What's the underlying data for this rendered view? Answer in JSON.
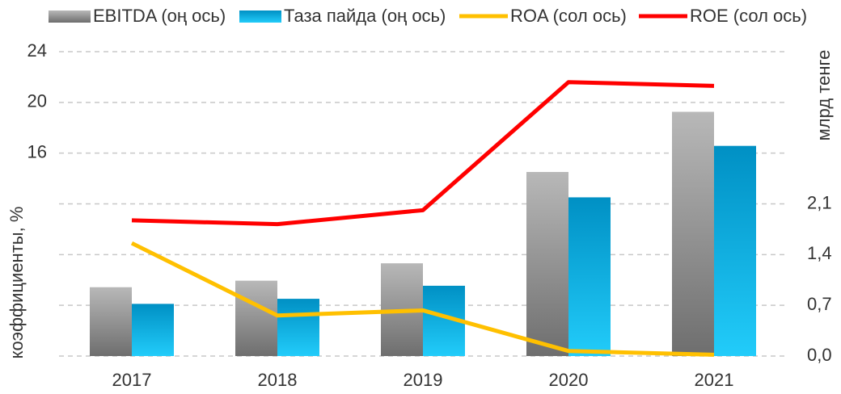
{
  "chart_data": {
    "type": "bar",
    "y_label": "коэффициенты, %",
    "y2_label": "млрд тенге",
    "categories": [
      "2017",
      "2018",
      "2019",
      "2020",
      "2021"
    ],
    "series": [
      {
        "name": "EBITDA (оң ось)",
        "type": "bar",
        "axis": "y2",
        "color": "#9a9a9a",
        "values": [
          0.95,
          1.04,
          1.28,
          2.54,
          3.37
        ]
      },
      {
        "name": "Таза пайда (оң ось)",
        "type": "bar",
        "axis": "y2",
        "color": "#00a8e0",
        "values": [
          0.72,
          0.79,
          0.97,
          2.19,
          2.9
        ]
      },
      {
        "name": "ROA (сол ось)",
        "type": "line",
        "color": "#ffc000",
        "values": [
          8.9,
          3.2,
          3.6,
          0.4,
          0.1
        ]
      },
      {
        "name": "ROE (сол ось)",
        "type": "line",
        "color": "#ff0000",
        "values": [
          10.7,
          10.4,
          11.5,
          21.6,
          21.3
        ]
      }
    ],
    "ylim": [
      0,
      24
    ],
    "yticks": [
      16,
      20,
      24
    ],
    "y2lim": [
      0,
      4.2
    ],
    "y2ticks": [
      {
        "value": 0,
        "label": "0,0"
      },
      {
        "value": 0.7,
        "label": "0,7"
      },
      {
        "value": 1.4,
        "label": "1,4"
      },
      {
        "value": 2.1,
        "label": "2,1"
      }
    ],
    "grid": true
  }
}
